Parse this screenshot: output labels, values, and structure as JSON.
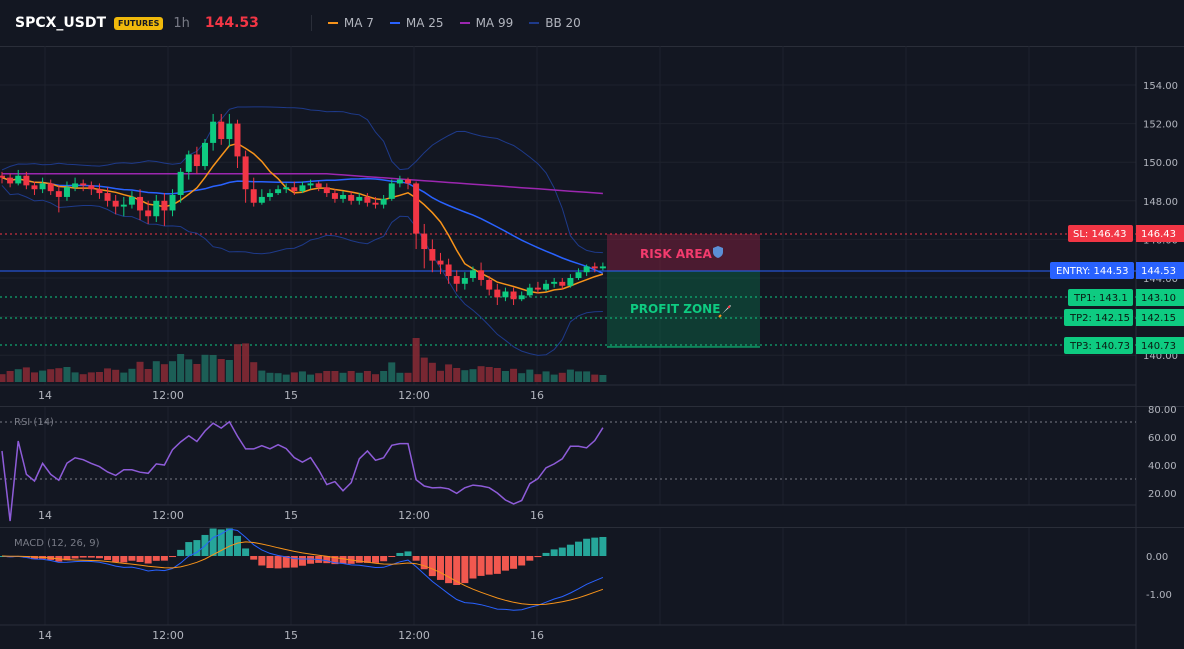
{
  "header": {
    "symbol": "SPCX_USDT",
    "badge": "FUTURES",
    "timeframe": "1h",
    "price": "144.53",
    "legend": [
      {
        "label": "MA 7",
        "color": "#f7931a"
      },
      {
        "label": "MA 25",
        "color": "#2962ff"
      },
      {
        "label": "MA 99",
        "color": "#9c27b0"
      },
      {
        "label": "BB 20",
        "color": "#1e3a8a"
      }
    ]
  },
  "colors": {
    "up": "#26a69a",
    "up_bright": "#0ecb81",
    "down": "#f23645",
    "bg": "#131722"
  },
  "price_axis": [
    "154.00",
    "152.00",
    "150.00",
    "148.00",
    "146.00",
    "144.00",
    "142.00",
    "140.00"
  ],
  "time_axis": [
    "14",
    "12:00",
    "15",
    "12:00",
    "16"
  ],
  "lines": {
    "sl": {
      "value": 146.43,
      "tag": "SL: 146.43",
      "axis": "146.43"
    },
    "entry": {
      "value": 144.53,
      "tag": "ENTRY: 144.53",
      "axis": "144.53"
    },
    "tp1": {
      "value": 143.1,
      "tag": "TP1: 143.1",
      "axis": "143.10"
    },
    "tp2": {
      "value": 142.15,
      "tag": "TP2: 142.15",
      "axis": "142.15"
    },
    "tp3": {
      "value": 140.73,
      "tag": "TP3: 140.73",
      "axis": "140.73"
    }
  },
  "zones": {
    "risk_label": "RISK AREA",
    "profit_label": "PROFIT ZONE"
  },
  "rsi": {
    "label": "RSI (14)",
    "axis": [
      "80.00",
      "60.00",
      "40.00",
      "20.00"
    ],
    "levels": [
      70,
      30
    ]
  },
  "macd": {
    "label": "MACD (12, 26, 9)",
    "axis": [
      "0.00",
      "-1.00"
    ]
  },
  "chart_data": {
    "type": "candlestick",
    "candles": [
      [
        149.3,
        149.2,
        149.5,
        148.9
      ],
      [
        149.2,
        148.9,
        149.4,
        148.7
      ],
      [
        148.9,
        149.3,
        149.6,
        148.8
      ],
      [
        149.3,
        148.8,
        149.5,
        148.6
      ],
      [
        148.8,
        148.6,
        149.0,
        148.3
      ],
      [
        148.6,
        148.9,
        149.2,
        148.4
      ],
      [
        148.9,
        148.5,
        149.1,
        148.3
      ],
      [
        148.5,
        148.2,
        148.8,
        147.4
      ],
      [
        148.2,
        148.7,
        149.0,
        148.0
      ],
      [
        148.7,
        148.9,
        149.2,
        148.5
      ],
      [
        148.9,
        148.8,
        149.1,
        148.5
      ],
      [
        148.8,
        148.6,
        149.0,
        148.3
      ],
      [
        148.6,
        148.4,
        148.9,
        148.1
      ],
      [
        148.4,
        148.0,
        148.7,
        147.7
      ],
      [
        148.0,
        147.7,
        148.3,
        147.3
      ],
      [
        147.7,
        147.8,
        148.2,
        147.2
      ],
      [
        147.8,
        148.2,
        148.5,
        147.6
      ],
      [
        148.2,
        147.5,
        148.6,
        147.0
      ],
      [
        147.5,
        147.2,
        148.0,
        146.8
      ],
      [
        147.2,
        148.0,
        148.3,
        146.9
      ],
      [
        148.0,
        147.5,
        148.4,
        146.7
      ],
      [
        147.5,
        148.3,
        148.6,
        147.2
      ],
      [
        148.3,
        149.5,
        149.7,
        147.9
      ],
      [
        149.5,
        150.4,
        150.6,
        149.1
      ],
      [
        150.4,
        149.8,
        150.8,
        149.4
      ],
      [
        149.8,
        151.0,
        151.2,
        149.6
      ],
      [
        151.0,
        152.1,
        152.5,
        150.6
      ],
      [
        152.1,
        151.2,
        152.5,
        150.9
      ],
      [
        151.2,
        152.0,
        152.5,
        150.8
      ],
      [
        152.0,
        150.3,
        152.2,
        149.7
      ],
      [
        150.3,
        148.6,
        150.6,
        147.9
      ],
      [
        148.6,
        147.9,
        149.2,
        147.7
      ],
      [
        147.9,
        148.2,
        148.6,
        147.8
      ],
      [
        148.2,
        148.4,
        148.6,
        148.0
      ],
      [
        148.4,
        148.6,
        148.8,
        148.3
      ],
      [
        148.6,
        148.7,
        148.9,
        148.4
      ],
      [
        148.7,
        148.5,
        149.0,
        148.3
      ],
      [
        148.5,
        148.8,
        149.0,
        148.4
      ],
      [
        148.8,
        148.9,
        149.1,
        148.6
      ],
      [
        148.9,
        148.7,
        149.0,
        148.5
      ],
      [
        148.7,
        148.4,
        148.9,
        148.2
      ],
      [
        148.4,
        148.1,
        148.6,
        147.9
      ],
      [
        148.1,
        148.3,
        148.5,
        147.9
      ],
      [
        148.3,
        148.0,
        148.5,
        147.8
      ],
      [
        148.0,
        148.2,
        148.4,
        147.8
      ],
      [
        148.2,
        147.9,
        148.4,
        147.7
      ],
      [
        147.9,
        147.8,
        148.2,
        147.6
      ],
      [
        147.8,
        148.1,
        148.3,
        147.6
      ],
      [
        148.1,
        148.9,
        149.1,
        148.0
      ],
      [
        148.9,
        149.1,
        149.3,
        148.7
      ],
      [
        149.1,
        148.9,
        149.2,
        148.6
      ],
      [
        148.9,
        146.3,
        149.0,
        145.5
      ],
      [
        146.3,
        145.5,
        146.8,
        144.5
      ],
      [
        145.5,
        144.9,
        146.0,
        144.3
      ],
      [
        144.9,
        144.7,
        145.3,
        144.2
      ],
      [
        144.7,
        144.1,
        145.0,
        143.7
      ],
      [
        144.1,
        143.7,
        144.4,
        143.3
      ],
      [
        143.7,
        144.0,
        144.3,
        143.4
      ],
      [
        144.0,
        144.4,
        144.6,
        143.8
      ],
      [
        144.4,
        143.9,
        144.8,
        143.6
      ],
      [
        143.9,
        143.4,
        144.1,
        143.1
      ],
      [
        143.4,
        143.0,
        143.7,
        142.6
      ],
      [
        143.0,
        143.3,
        143.5,
        142.8
      ],
      [
        143.3,
        142.9,
        143.5,
        142.6
      ],
      [
        142.9,
        143.1,
        143.3,
        142.8
      ],
      [
        143.1,
        143.5,
        143.7,
        143.0
      ],
      [
        143.5,
        143.4,
        143.8,
        143.2
      ],
      [
        143.4,
        143.7,
        143.9,
        143.3
      ],
      [
        143.7,
        143.8,
        144.0,
        143.5
      ],
      [
        143.8,
        143.6,
        144.0,
        143.4
      ],
      [
        143.6,
        144.0,
        144.2,
        143.5
      ],
      [
        144.0,
        144.3,
        144.5,
        143.9
      ],
      [
        144.3,
        144.6,
        144.7,
        144.1
      ],
      [
        144.6,
        144.5,
        144.8,
        144.3
      ],
      [
        144.5,
        144.6,
        144.8,
        144.4
      ]
    ]
  }
}
